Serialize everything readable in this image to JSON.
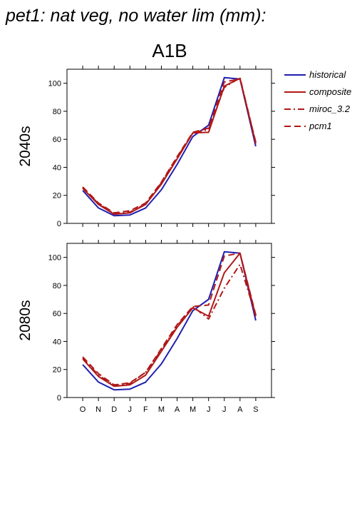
{
  "title": "pet1: nat veg, no water lim (mm):",
  "scenario": "A1B",
  "colors": {
    "historical": "#2020b0",
    "model": "#b01818"
  },
  "chart_data": {
    "type": "line",
    "x": [
      "O",
      "N",
      "D",
      "J",
      "F",
      "M",
      "A",
      "M",
      "J",
      "J",
      "A",
      "S"
    ],
    "ylim": [
      0,
      110
    ],
    "yticks": [
      0,
      20,
      40,
      60,
      80,
      100
    ],
    "legend_placement": "right",
    "legend": [
      {
        "name": "historical",
        "color": "#2020b0",
        "dash": "solid"
      },
      {
        "name": "composite",
        "color": "#b01818",
        "dash": "solid"
      },
      {
        "name": "miroc_3.2",
        "color": "#b01818",
        "dash": "dashdot"
      },
      {
        "name": "pcm1",
        "color": "#b01818",
        "dash": "dashed"
      }
    ],
    "panels": [
      {
        "label": "2040s",
        "series": [
          {
            "name": "historical",
            "values": [
              23.5,
              11,
              5.5,
              6,
              11,
              24,
              42,
              62,
              70,
              104,
              103,
              55
            ]
          },
          {
            "name": "composite",
            "values": [
              25,
              13.5,
              6.5,
              7.5,
              13.5,
              28,
              46,
              64.5,
              65,
              98,
              103.5,
              57
            ]
          },
          {
            "name": "miroc_3.2",
            "values": [
              25.5,
              14,
              7,
              8,
              14,
              29,
              47,
              64.5,
              67,
              97,
              104,
              57.5
            ]
          },
          {
            "name": "pcm1",
            "values": [
              26,
              14.5,
              7.5,
              9,
              14.5,
              29.5,
              47.5,
              65,
              68,
              101,
              103,
              58
            ]
          }
        ]
      },
      {
        "label": "2080s",
        "series": [
          {
            "name": "historical",
            "values": [
              23.5,
              11,
              5.5,
              6,
              11,
              24,
              42,
              62,
              70,
              104,
              103,
              55
            ]
          },
          {
            "name": "composite",
            "values": [
              27.5,
              15,
              8,
              9,
              16,
              33,
              50,
              64,
              58,
              89,
              103,
              58
            ]
          },
          {
            "name": "miroc_3.2",
            "values": [
              28,
              16,
              8.5,
              10,
              18,
              34,
              51,
              65,
              56,
              78,
              95,
              58.5
            ]
          },
          {
            "name": "pcm1",
            "values": [
              29,
              17,
              9,
              10.5,
              18,
              35,
              52,
              65,
              66,
              101,
              103,
              59
            ]
          }
        ]
      }
    ]
  }
}
